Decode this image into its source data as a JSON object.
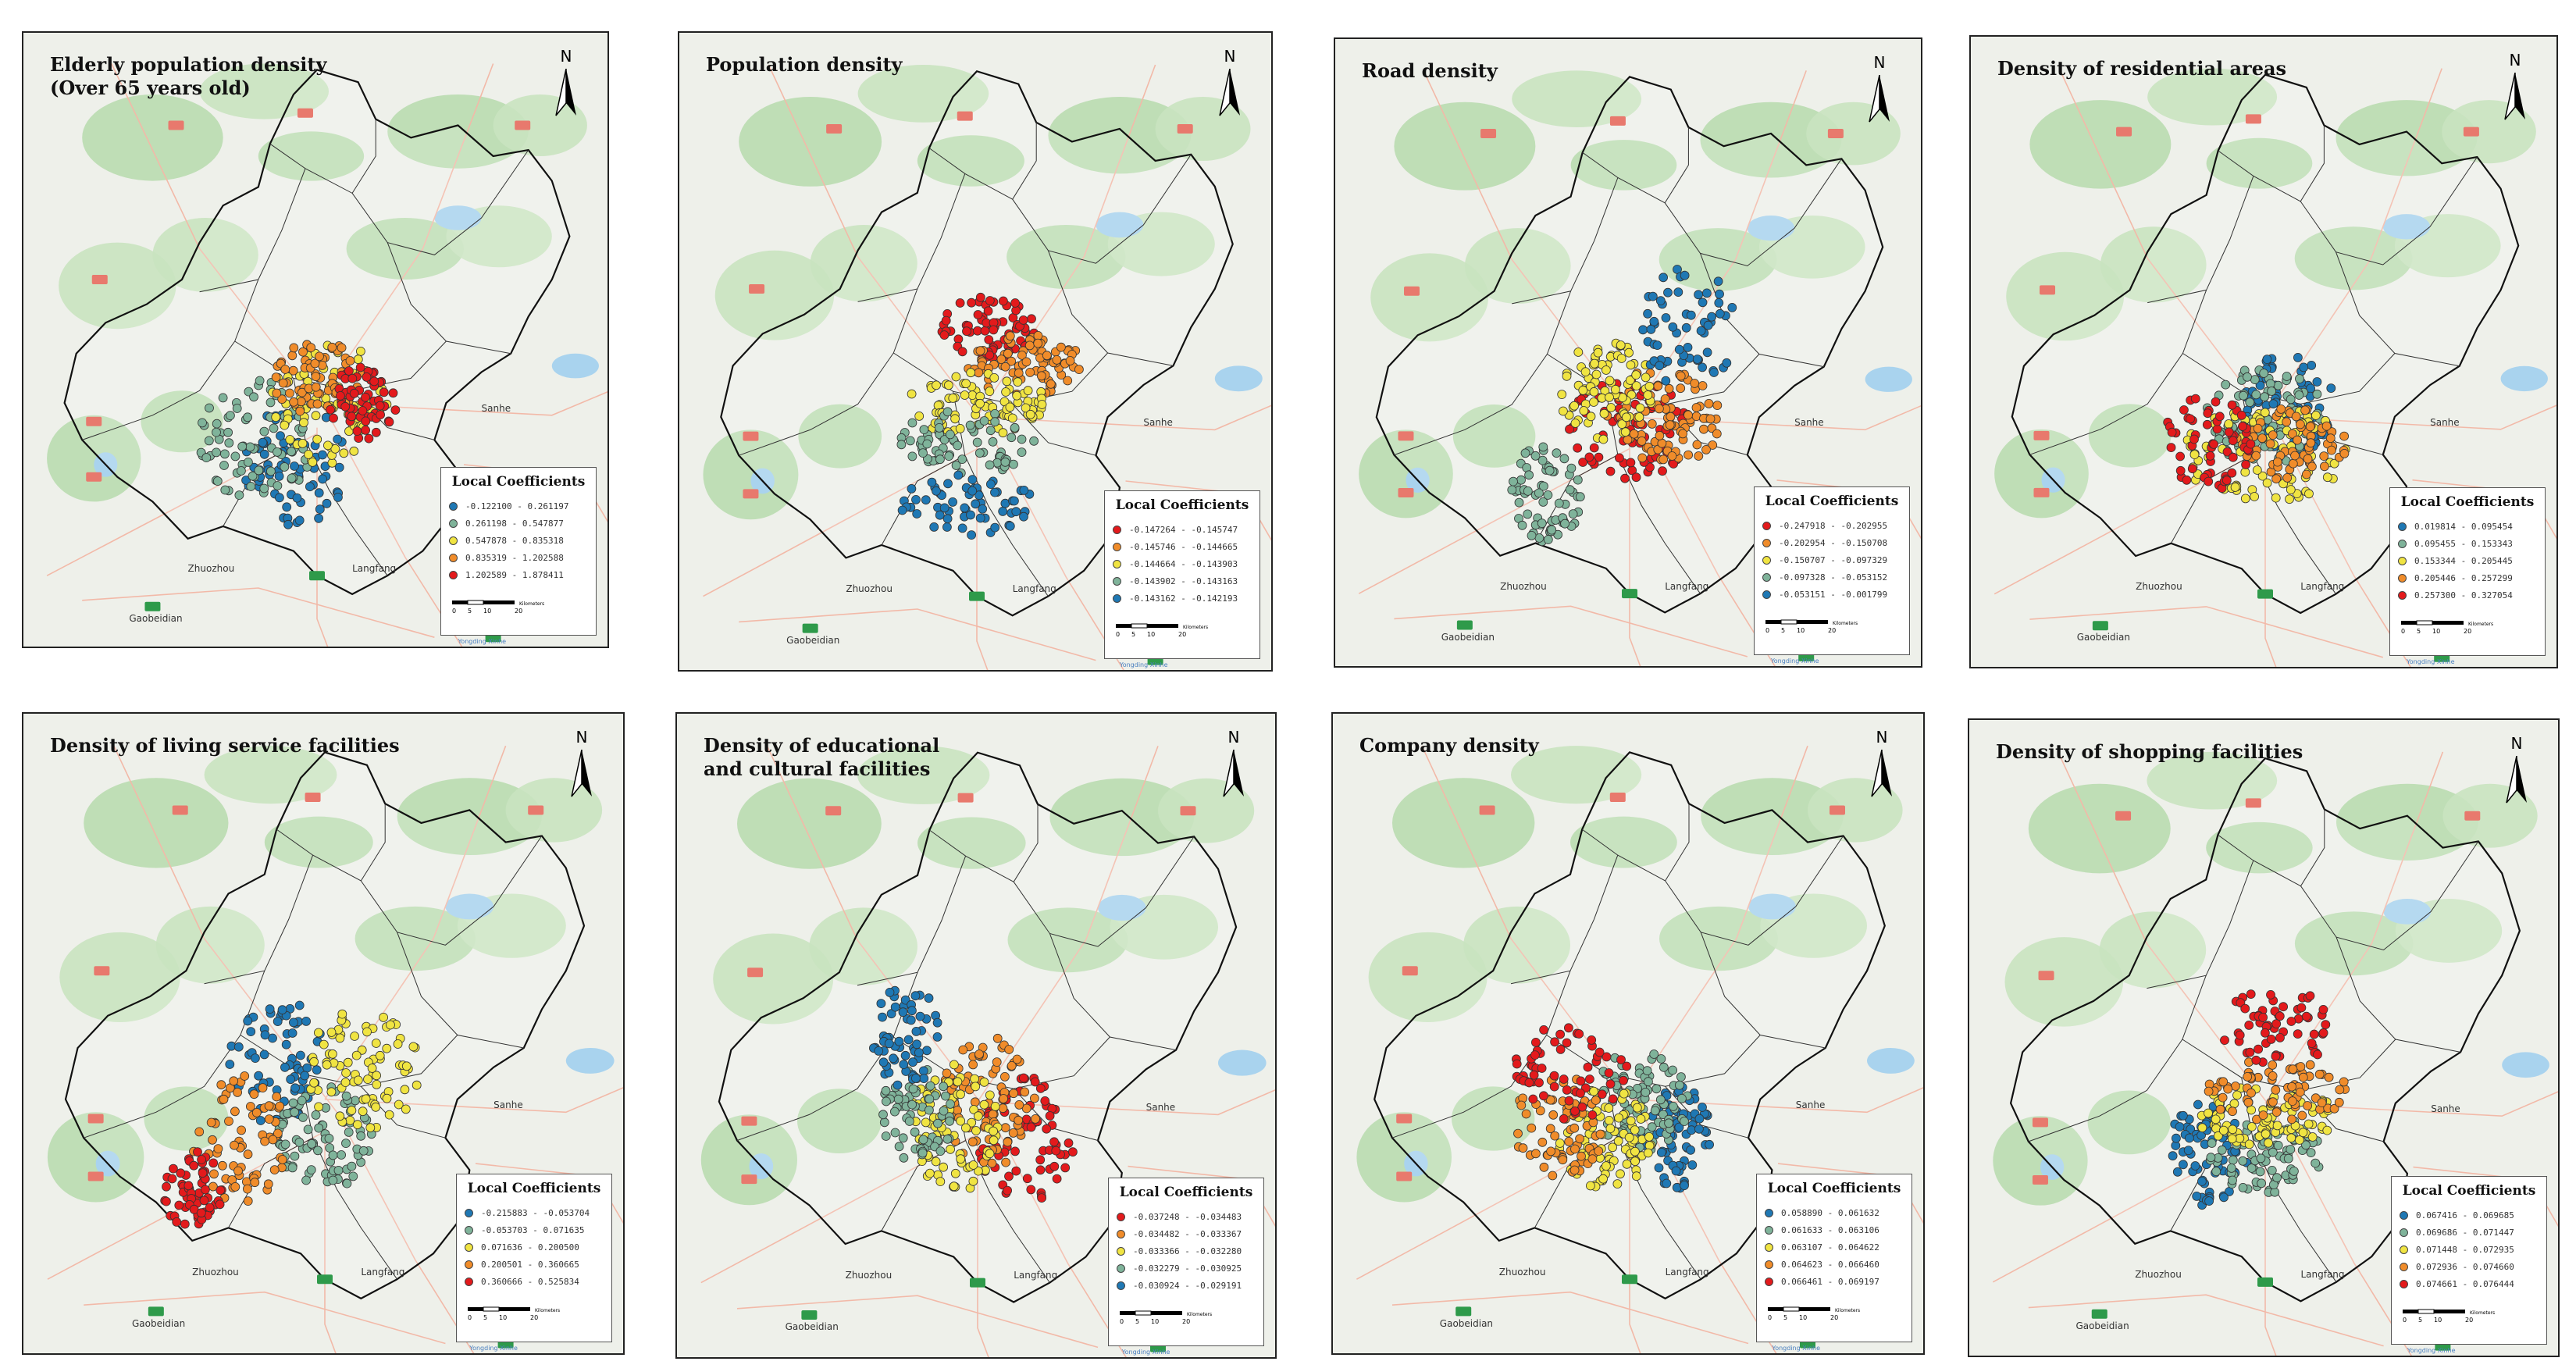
{
  "legend_title": "Local Coefficients",
  "place_names": {
    "sanhe": "Sanhe",
    "zhuozhou": "Zhuozhou",
    "langfang": "Langfang",
    "gaobeidian": "Gaobeidian"
  },
  "scale_units": "Kilometers",
  "scale_ticks": [
    "0",
    "5",
    "10",
    "20"
  ],
  "credit": "Yongding Xinhe",
  "north_label": "N",
  "class_colors": [
    "#1f78b4",
    "#7fb39a",
    "#f0e442",
    "#f08c2a",
    "#e31a1c"
  ],
  "panels": [
    {
      "title": "Elderly population density\n(Over 65 years old)",
      "colors": [
        "#1f78b4",
        "#7fb39a",
        "#f0e442",
        "#f08c2a",
        "#e31a1c"
      ],
      "classes": [
        "-0.122100 - 0.261197",
        "0.261198 - 0.547877",
        "0.547878 - 0.835318",
        "0.835319 - 1.202588",
        "1.202589 - 1.878411"
      ]
    },
    {
      "title": "Population density",
      "colors": [
        "#e31a1c",
        "#f08c2a",
        "#f0e442",
        "#7fb39a",
        "#1f78b4"
      ],
      "classes": [
        "-0.147264 - -0.145747",
        "-0.145746 - -0.144665",
        "-0.144664 - -0.143903",
        "-0.143902 - -0.143163",
        "-0.143162 - -0.142193"
      ]
    },
    {
      "title": "Road density",
      "colors": [
        "#e31a1c",
        "#f08c2a",
        "#f0e442",
        "#7fb39a",
        "#1f78b4"
      ],
      "classes": [
        "-0.247918 - -0.202955",
        "-0.202954 - -0.150708",
        "-0.150707 - -0.097329",
        "-0.097328 - -0.053152",
        "-0.053151 - -0.001799"
      ]
    },
    {
      "title": "Density of residential areas",
      "colors": [
        "#1f78b4",
        "#7fb39a",
        "#f0e442",
        "#f08c2a",
        "#e31a1c"
      ],
      "classes": [
        "0.019814 - 0.095454",
        "0.095455 - 0.153343",
        "0.153344 - 0.205445",
        "0.205446 - 0.257299",
        "0.257300 - 0.327054"
      ]
    },
    {
      "title": "Density of living service facilities",
      "colors": [
        "#1f78b4",
        "#7fb39a",
        "#f0e442",
        "#f08c2a",
        "#e31a1c"
      ],
      "classes": [
        "-0.215883 - -0.053704",
        "-0.053703 - 0.071635",
        "0.071636 - 0.200500",
        "0.200501 - 0.360665",
        "0.360666 - 0.525834"
      ]
    },
    {
      "title": "Density of educational\nand cultural facilities",
      "colors": [
        "#e31a1c",
        "#f08c2a",
        "#f0e442",
        "#7fb39a",
        "#1f78b4"
      ],
      "classes": [
        "-0.037248 - -0.034483",
        "-0.034482 - -0.033367",
        "-0.033366 - -0.032280",
        "-0.032279 - -0.030925",
        "-0.030924 - -0.029191"
      ]
    },
    {
      "title": "Company density",
      "colors": [
        "#1f78b4",
        "#7fb39a",
        "#f0e442",
        "#f08c2a",
        "#e31a1c"
      ],
      "classes": [
        "0.058890 - 0.061632",
        "0.061633 - 0.063106",
        "0.063107 - 0.064622",
        "0.064623 - 0.066460",
        "0.066461 - 0.069197"
      ]
    },
    {
      "title": "Density of shopping facilities",
      "colors": [
        "#1f78b4",
        "#7fb39a",
        "#f0e442",
        "#f08c2a",
        "#e31a1c"
      ],
      "classes": [
        "0.067416 - 0.069685",
        "0.069686 - 0.071447",
        "0.071448 - 0.072935",
        "0.072936 - 0.074660",
        "0.074661 - 0.076444"
      ]
    }
  ]
}
